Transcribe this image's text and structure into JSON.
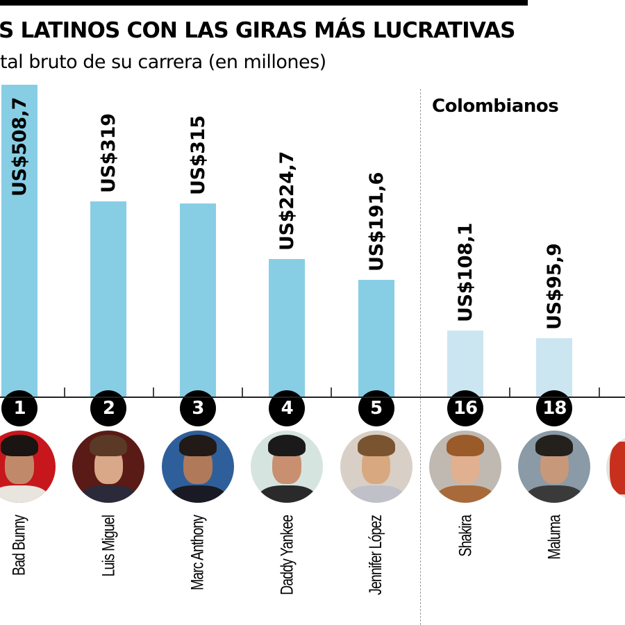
{
  "header": {
    "title": "S LATINOS CON LAS GIRAS MÁS LUCRATIVAS",
    "subtitle": "tal bruto de su carrera (en millones)"
  },
  "section": {
    "colombianos_label": "Colombianos"
  },
  "colors": {
    "bar_primary": "#87cee5",
    "bar_colombian": "#cbe6f1",
    "rank_badge": "#000000",
    "text": "#000000"
  },
  "artists": [
    {
      "rank": "1",
      "name": "Bad Bunny",
      "value_label": "US$508,7",
      "group": "top5"
    },
    {
      "rank": "2",
      "name": "Luis Miguel",
      "value_label": "US$319",
      "group": "top5"
    },
    {
      "rank": "3",
      "name": "Marc Anthony",
      "value_label": "US$315",
      "group": "top5"
    },
    {
      "rank": "4",
      "name": "Daddy Yankee",
      "value_label": "US$224,7",
      "group": "top5"
    },
    {
      "rank": "5",
      "name": "Jennifer López",
      "value_label": "US$191,6",
      "group": "top5"
    },
    {
      "rank": "16",
      "name": "Shakira",
      "value_label": "US$108,1",
      "group": "Colombianos"
    },
    {
      "rank": "18",
      "name": "Maluma",
      "value_label": "US$95,9",
      "group": "Colombianos"
    }
  ],
  "chart_data": {
    "type": "bar",
    "title": "S LATINOS CON LAS GIRAS MÁS LUCRATIVAS",
    "subtitle": "tal bruto de su carrera (en millones)",
    "categories": [
      "Bad Bunny",
      "Luis Miguel",
      "Marc Anthony",
      "Daddy Yankee",
      "Jennifer López",
      "Shakira",
      "Maluma"
    ],
    "ranks": [
      1,
      2,
      3,
      4,
      5,
      16,
      18
    ],
    "values": [
      508.7,
      319,
      315,
      224.7,
      191.6,
      108.1,
      95.9
    ],
    "value_labels": [
      "US$508,7",
      "US$319",
      "US$315",
      "US$224,7",
      "US$191,6",
      "US$108,1",
      "US$95,9"
    ],
    "unit": "US$ millones",
    "groups": [
      {
        "name": "",
        "members": [
          "Bad Bunny",
          "Luis Miguel",
          "Marc Anthony",
          "Daddy Yankee",
          "Jennifer López"
        ],
        "color": "#87cee5"
      },
      {
        "name": "Colombianos",
        "members": [
          "Shakira",
          "Maluma"
        ],
        "color": "#cbe6f1"
      }
    ],
    "xlabel": "",
    "ylabel": "",
    "grid": false,
    "orientation": "vertical"
  }
}
